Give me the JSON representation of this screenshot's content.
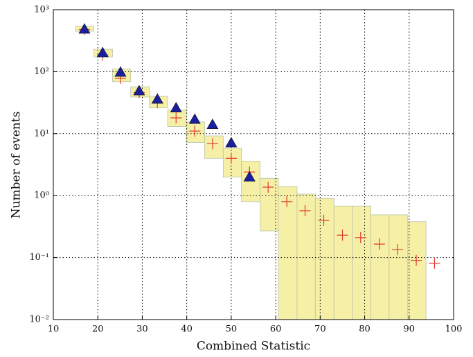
{
  "chart_data": {
    "type": "scatter",
    "xlabel": "Combined Statistic",
    "ylabel": "Number of events",
    "xlim": [
      10,
      100
    ],
    "xticks": [
      10,
      20,
      30,
      40,
      50,
      60,
      70,
      80,
      90,
      100
    ],
    "ylim": [
      0.01,
      1000
    ],
    "ylog": true,
    "yticks": [
      {
        "value": 0.01,
        "label": "10⁻²"
      },
      {
        "value": 0.1,
        "label": "10⁻¹"
      },
      {
        "value": 1,
        "label": "10⁰"
      },
      {
        "value": 10,
        "label": "10¹"
      },
      {
        "value": 100,
        "label": "10²"
      },
      {
        "value": 1000,
        "label": "10³"
      }
    ],
    "grid": true,
    "band": {
      "color": "#f6f0a6",
      "edge_color": "#b9c2ad",
      "bins": [
        15,
        19.1,
        23.3,
        27.4,
        31.6,
        35.7,
        39.9,
        44,
        48.2,
        52.3,
        56.5,
        60.6,
        64.8,
        68.9,
        73.1,
        77.2,
        81.4,
        85.5,
        89.7,
        93.8
      ],
      "low": [
        450,
        173,
        69,
        39,
        26,
        13,
        7.2,
        4.0,
        2.0,
        0.8,
        0.27,
        0.01,
        0.01,
        0.01,
        0.01,
        0.01,
        0.01,
        0.01,
        0.01
      ],
      "high": [
        540,
        230,
        110,
        57,
        40,
        24,
        15.5,
        9.2,
        5.8,
        3.6,
        1.9,
        1.4,
        1.06,
        0.9,
        0.68,
        0.68,
        0.49,
        0.49,
        0.38
      ]
    },
    "series": [
      {
        "marker": "plus",
        "color": "#e23a2e",
        "x": [
          17,
          21.1,
          25.1,
          29.3,
          33.4,
          37.6,
          41.8,
          45.8,
          50.0,
          54.1,
          58.3,
          62.5,
          66.6,
          70.8,
          75.0,
          79.1,
          83.3,
          87.4,
          91.6,
          95.7
        ],
        "values": [
          480,
          185,
          78,
          46,
          32,
          18,
          11,
          6.9,
          4.0,
          2.4,
          1.37,
          0.8,
          0.57,
          0.4,
          0.23,
          0.21,
          0.165,
          0.135,
          0.09,
          0.081
        ]
      },
      {
        "marker": "triangle",
        "color": "#1a1f9e",
        "x": [
          17,
          21.1,
          25.1,
          29.3,
          33.4,
          37.6,
          41.8,
          45.8,
          50.0,
          54.1
        ],
        "values": [
          486,
          202,
          98,
          49,
          36,
          26,
          17,
          14,
          7.1,
          2.0
        ]
      }
    ]
  }
}
